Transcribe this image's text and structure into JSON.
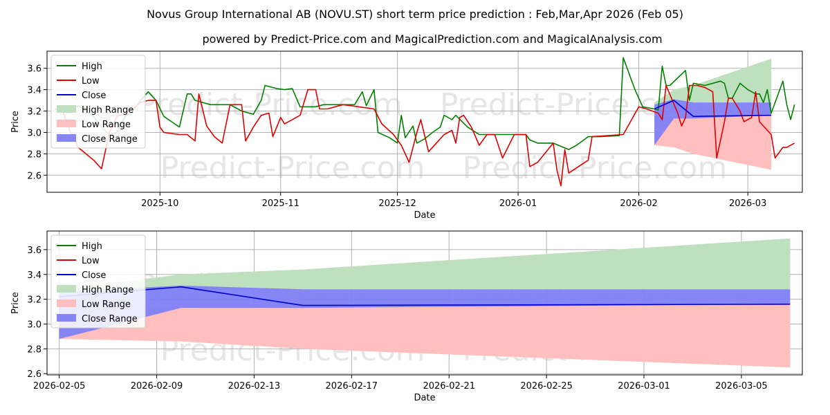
{
  "title": "Novus Group International AB (NOVU.ST) short term price prediction : Feb,Mar,Apr 2026 (Feb 05)",
  "subtitle": "powered by Predict-Price.com and MagicalPrediction.com and MagicalAnalysis.com",
  "watermark": "Predict-Price.com",
  "colors": {
    "high": "#008000",
    "low": "#dd0000",
    "close": "#0000cc",
    "high_range": "#bfe0bf",
    "low_range": "#ffbfbf",
    "close_range": "#7f7ff5"
  },
  "chart_data": [
    {
      "type": "line",
      "panel": "top",
      "xlabel": "Date",
      "ylabel": "Price",
      "xlim": [
        "2025-09-02",
        "2026-03-15"
      ],
      "ylim": [
        2.44,
        3.76
      ],
      "x_ticks": [
        "2025-10",
        "2025-11",
        "2025-12",
        "2026-01",
        "2026-02",
        "2026-03"
      ],
      "y_ticks": [
        "2.6",
        "2.8",
        "3.0",
        "3.2",
        "3.4",
        "3.6"
      ],
      "legend": [
        "High",
        "Low",
        "Close",
        "High Range",
        "Low Range",
        "Close Range"
      ],
      "legend_position": "upper-left",
      "grid": true,
      "series": [
        {
          "name": "High",
          "points": [
            [
              "2025-09-04",
              3.22
            ],
            [
              "2025-09-06",
              3.22
            ],
            [
              "2025-09-08",
              3.2
            ],
            [
              "2025-09-10",
              3.25
            ],
            [
              "2025-09-12",
              3.2
            ],
            [
              "2025-09-14",
              3.15
            ],
            [
              "2025-09-16",
              3.05
            ],
            [
              "2025-09-18",
              2.98
            ],
            [
              "2025-09-20",
              3.0
            ],
            [
              "2025-09-22",
              3.15
            ],
            [
              "2025-09-24",
              3.2
            ],
            [
              "2025-09-26",
              3.3
            ],
            [
              "2025-09-28",
              3.38
            ],
            [
              "2025-09-30",
              3.3
            ],
            [
              "2025-10-02",
              3.15
            ],
            [
              "2025-10-04",
              3.1
            ],
            [
              "2025-10-06",
              3.05
            ],
            [
              "2025-10-08",
              3.36
            ],
            [
              "2025-10-09",
              3.36
            ],
            [
              "2025-10-10",
              3.3
            ],
            [
              "2025-10-14",
              3.26
            ],
            [
              "2025-10-19",
              3.26
            ],
            [
              "2025-10-22",
              3.2
            ],
            [
              "2025-10-25",
              3.17
            ],
            [
              "2025-10-27",
              3.3
            ],
            [
              "2025-10-28",
              3.44
            ],
            [
              "2025-10-31",
              3.41
            ],
            [
              "2025-11-02",
              3.4
            ],
            [
              "2025-11-04",
              3.41
            ],
            [
              "2025-11-06",
              3.24
            ],
            [
              "2025-11-10",
              3.24
            ],
            [
              "2025-11-12",
              3.26
            ],
            [
              "2025-11-20",
              3.26
            ],
            [
              "2025-11-22",
              3.38
            ],
            [
              "2025-11-23",
              3.25
            ],
            [
              "2025-11-25",
              3.4
            ],
            [
              "2025-11-26",
              3.0
            ],
            [
              "2025-11-29",
              2.95
            ],
            [
              "2025-12-01",
              2.9
            ],
            [
              "2025-12-02",
              3.16
            ],
            [
              "2025-12-03",
              2.95
            ],
            [
              "2025-12-05",
              3.06
            ],
            [
              "2025-12-06",
              2.9
            ],
            [
              "2025-12-08",
              2.94
            ],
            [
              "2025-12-10",
              3.0
            ],
            [
              "2025-12-12",
              3.05
            ],
            [
              "2025-12-13",
              3.16
            ],
            [
              "2025-12-15",
              3.12
            ],
            [
              "2025-12-16",
              3.16
            ],
            [
              "2025-12-19",
              3.05
            ],
            [
              "2025-12-22",
              2.98
            ],
            [
              "2025-12-27",
              2.98
            ],
            [
              "2026-01-01",
              2.98
            ],
            [
              "2026-01-03",
              2.98
            ],
            [
              "2026-01-04",
              2.93
            ],
            [
              "2026-01-06",
              2.9
            ],
            [
              "2026-01-10",
              2.9
            ],
            [
              "2026-01-14",
              2.84
            ],
            [
              "2026-01-16",
              2.88
            ],
            [
              "2026-01-19",
              2.96
            ],
            [
              "2026-01-22",
              2.96
            ],
            [
              "2026-01-27",
              2.97
            ],
            [
              "2026-01-28",
              3.7
            ],
            [
              "2026-01-31",
              3.4
            ],
            [
              "2026-02-02",
              3.24
            ],
            [
              "2026-02-05",
              3.22
            ],
            [
              "2026-02-06",
              3.21
            ],
            [
              "2026-02-07",
              3.62
            ],
            [
              "2026-02-08",
              3.44
            ],
            [
              "2026-02-09",
              3.44
            ],
            [
              "2026-02-13",
              3.58
            ],
            [
              "2026-02-14",
              3.3
            ],
            [
              "2026-02-15",
              3.46
            ],
            [
              "2026-02-18",
              3.44
            ],
            [
              "2026-02-22",
              3.48
            ],
            [
              "2026-02-23",
              3.46
            ],
            [
              "2026-02-24",
              3.32
            ],
            [
              "2026-02-25",
              3.32
            ],
            [
              "2026-02-27",
              3.46
            ],
            [
              "2026-03-01",
              3.4
            ],
            [
              "2026-03-03",
              3.36
            ],
            [
              "2026-03-04",
              3.36
            ],
            [
              "2026-03-05",
              3.28
            ],
            [
              "2026-03-06",
              3.4
            ],
            [
              "2026-03-07",
              3.18
            ],
            [
              "2026-03-10",
              3.48
            ],
            [
              "2026-03-11",
              3.26
            ],
            [
              "2026-03-12",
              3.12
            ],
            [
              "2026-03-13",
              3.26
            ]
          ]
        },
        {
          "name": "Low",
          "points": [
            [
              "2025-09-04",
              3.22
            ],
            [
              "2025-09-06",
              3.2
            ],
            [
              "2025-09-08",
              3.0
            ],
            [
              "2025-09-10",
              2.86
            ],
            [
              "2025-09-12",
              2.8
            ],
            [
              "2025-09-14",
              2.74
            ],
            [
              "2025-09-16",
              2.66
            ],
            [
              "2025-09-18",
              3.0
            ],
            [
              "2025-09-20",
              3.15
            ],
            [
              "2025-09-22",
              3.18
            ],
            [
              "2025-09-24",
              3.22
            ],
            [
              "2025-09-26",
              3.28
            ],
            [
              "2025-09-28",
              3.3
            ],
            [
              "2025-09-30",
              3.3
            ],
            [
              "2025-10-01",
              3.05
            ],
            [
              "2025-10-02",
              3.0
            ],
            [
              "2025-10-06",
              2.98
            ],
            [
              "2025-10-08",
              2.98
            ],
            [
              "2025-10-10",
              2.92
            ],
            [
              "2025-10-11",
              3.36
            ],
            [
              "2025-10-13",
              3.06
            ],
            [
              "2025-10-15",
              2.96
            ],
            [
              "2025-10-17",
              2.9
            ],
            [
              "2025-10-19",
              3.26
            ],
            [
              "2025-10-22",
              3.26
            ],
            [
              "2025-10-23",
              2.92
            ],
            [
              "2025-10-25",
              3.05
            ],
            [
              "2025-10-27",
              3.16
            ],
            [
              "2025-10-29",
              3.18
            ],
            [
              "2025-10-30",
              2.96
            ],
            [
              "2025-11-01",
              3.14
            ],
            [
              "2025-11-02",
              3.08
            ],
            [
              "2025-11-04",
              3.12
            ],
            [
              "2025-11-06",
              3.16
            ],
            [
              "2025-11-08",
              3.4
            ],
            [
              "2025-11-10",
              3.4
            ],
            [
              "2025-11-11",
              3.22
            ],
            [
              "2025-11-13",
              3.22
            ],
            [
              "2025-11-17",
              3.26
            ],
            [
              "2025-11-25",
              3.22
            ],
            [
              "2025-11-27",
              3.08
            ],
            [
              "2025-11-30",
              2.98
            ],
            [
              "2025-12-02",
              2.88
            ],
            [
              "2025-12-04",
              2.72
            ],
            [
              "2025-12-06",
              3.0
            ],
            [
              "2025-12-07",
              3.12
            ],
            [
              "2025-12-09",
              2.82
            ],
            [
              "2025-12-11",
              2.9
            ],
            [
              "2025-12-13",
              2.98
            ],
            [
              "2025-12-14",
              3.0
            ],
            [
              "2025-12-15",
              3.02
            ],
            [
              "2025-12-16",
              2.9
            ],
            [
              "2025-12-17",
              3.14
            ],
            [
              "2025-12-18",
              3.16
            ],
            [
              "2025-12-20",
              3.05
            ],
            [
              "2025-12-22",
              2.88
            ],
            [
              "2025-12-24",
              2.98
            ],
            [
              "2025-12-26",
              2.98
            ],
            [
              "2025-12-28",
              2.76
            ],
            [
              "2025-12-31",
              2.98
            ],
            [
              "2026-01-03",
              2.98
            ],
            [
              "2026-01-04",
              2.68
            ],
            [
              "2026-01-06",
              2.72
            ],
            [
              "2026-01-10",
              2.9
            ],
            [
              "2026-01-11",
              2.64
            ],
            [
              "2026-01-12",
              2.5
            ],
            [
              "2026-01-13",
              2.84
            ],
            [
              "2026-01-14",
              2.62
            ],
            [
              "2026-01-19",
              2.74
            ],
            [
              "2026-01-20",
              2.96
            ],
            [
              "2026-01-24",
              2.97
            ],
            [
              "2026-01-28",
              2.98
            ],
            [
              "2026-02-01",
              3.24
            ],
            [
              "2026-02-03",
              3.22
            ],
            [
              "2026-02-06",
              3.18
            ],
            [
              "2026-02-07",
              3.12
            ],
            [
              "2026-02-08",
              3.44
            ],
            [
              "2026-02-11",
              3.18
            ],
            [
              "2026-02-12",
              3.06
            ],
            [
              "2026-02-13",
              3.14
            ],
            [
              "2026-02-14",
              3.44
            ],
            [
              "2026-02-16",
              3.44
            ],
            [
              "2026-02-18",
              3.42
            ],
            [
              "2026-02-20",
              3.38
            ],
            [
              "2026-02-21",
              2.76
            ],
            [
              "2026-02-23",
              3.1
            ],
            [
              "2026-02-24",
              3.32
            ],
            [
              "2026-02-25",
              3.32
            ],
            [
              "2026-02-27",
              3.2
            ],
            [
              "2026-02-28",
              3.1
            ],
            [
              "2026-03-01",
              3.12
            ],
            [
              "2026-03-02",
              3.14
            ],
            [
              "2026-03-03",
              3.38
            ],
            [
              "2026-03-04",
              3.1
            ],
            [
              "2026-03-07",
              2.98
            ],
            [
              "2026-03-08",
              2.76
            ],
            [
              "2026-03-10",
              2.86
            ],
            [
              "2026-03-11",
              2.86
            ],
            [
              "2026-03-13",
              2.9
            ]
          ]
        },
        {
          "name": "Close",
          "points": [
            [
              "2026-02-05",
              3.22
            ],
            [
              "2026-02-10",
              3.3
            ],
            [
              "2026-02-15",
              3.15
            ],
            [
              "2026-03-07",
              3.16
            ]
          ]
        }
      ],
      "ranges": [
        {
          "name": "High Range",
          "x": [
            "2026-02-05",
            "2026-02-10",
            "2026-02-15",
            "2026-03-07"
          ],
          "lower": [
            3.26,
            3.28,
            3.28,
            3.28
          ],
          "upper": [
            3.28,
            3.4,
            3.44,
            3.69
          ]
        },
        {
          "name": "Low Range",
          "x": [
            "2026-02-05",
            "2026-02-10",
            "2026-02-15",
            "2026-03-07"
          ],
          "lower": [
            2.88,
            2.86,
            2.8,
            2.65
          ],
          "upper": [
            3.16,
            3.14,
            3.14,
            3.16
          ]
        },
        {
          "name": "Close Range",
          "x": [
            "2026-02-05",
            "2026-02-10",
            "2026-02-15",
            "2026-03-07"
          ],
          "lower": [
            2.88,
            3.13,
            3.13,
            3.16
          ],
          "upper": [
            3.26,
            3.31,
            3.28,
            3.28
          ]
        }
      ]
    },
    {
      "type": "line",
      "panel": "bottom",
      "xlabel": "Date",
      "ylabel": "Price",
      "xlim": [
        "2026-02-04.5",
        "2026-03-07.5"
      ],
      "ylim": [
        2.59,
        3.75
      ],
      "x_ticks": [
        "2026-02-05",
        "2026-02-09",
        "2026-02-13",
        "2026-02-17",
        "2026-02-21",
        "2026-02-25",
        "2026-03-01",
        "2026-03-05"
      ],
      "y_ticks": [
        "2.6",
        "2.8",
        "3.0",
        "3.2",
        "3.4",
        "3.6"
      ],
      "legend": [
        "High",
        "Low",
        "Close",
        "High Range",
        "Low Range",
        "Close Range"
      ],
      "legend_position": "upper-left",
      "grid": true,
      "series": [
        {
          "name": "High",
          "points": []
        },
        {
          "name": "Low",
          "points": []
        },
        {
          "name": "Close",
          "points": [
            [
              "2026-02-05",
              3.22
            ],
            [
              "2026-02-10",
              3.3
            ],
            [
              "2026-02-15",
              3.15
            ],
            [
              "2026-03-07",
              3.16
            ]
          ]
        }
      ],
      "ranges": [
        {
          "name": "High Range",
          "x": [
            "2026-02-05",
            "2026-02-10",
            "2026-02-15",
            "2026-03-07"
          ],
          "lower": [
            3.26,
            3.28,
            3.28,
            3.28
          ],
          "upper": [
            3.28,
            3.4,
            3.44,
            3.69
          ]
        },
        {
          "name": "Low Range",
          "x": [
            "2026-02-05",
            "2026-02-10",
            "2026-02-15",
            "2026-03-07"
          ],
          "lower": [
            2.88,
            2.86,
            2.8,
            2.65
          ],
          "upper": [
            3.16,
            3.14,
            3.14,
            3.16
          ]
        },
        {
          "name": "Close Range",
          "x": [
            "2026-02-05",
            "2026-02-10",
            "2026-02-15",
            "2026-03-07"
          ],
          "lower": [
            2.88,
            3.13,
            3.13,
            3.16
          ],
          "upper": [
            3.26,
            3.31,
            3.28,
            3.28
          ]
        }
      ]
    }
  ]
}
